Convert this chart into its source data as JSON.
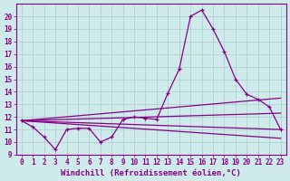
{
  "bg_color": "#ceeaea",
  "grid_color": "#aacccc",
  "line_color": "#880088",
  "x_label": "Windchill (Refroidissement éolien,°C)",
  "xlabel_fontsize": 6.5,
  "xlim": [
    -0.5,
    23.5
  ],
  "ylim": [
    9,
    21
  ],
  "xticks": [
    0,
    1,
    2,
    3,
    4,
    5,
    6,
    7,
    8,
    9,
    10,
    11,
    12,
    13,
    14,
    15,
    16,
    17,
    18,
    19,
    20,
    21,
    22,
    23
  ],
  "yticks": [
    9,
    10,
    11,
    12,
    13,
    14,
    15,
    16,
    17,
    18,
    19,
    20
  ],
  "tick_fontsize": 5.5,
  "main_x": [
    0,
    1,
    2,
    3,
    4,
    5,
    6,
    7,
    8,
    9,
    10,
    11,
    12,
    13,
    14,
    15,
    16,
    17,
    18,
    19,
    20,
    21,
    22,
    23
  ],
  "main_y": [
    11.7,
    11.2,
    10.4,
    9.4,
    11.0,
    11.1,
    11.1,
    10.0,
    10.4,
    11.8,
    12.0,
    11.9,
    11.8,
    13.9,
    15.8,
    20.0,
    20.5,
    19.0,
    17.2,
    15.0,
    13.8,
    13.4,
    12.8,
    11.0
  ],
  "line1_x": [
    0,
    23
  ],
  "line1_y": [
    11.7,
    13.5
  ],
  "line2_x": [
    0,
    23
  ],
  "line2_y": [
    11.7,
    12.3
  ],
  "line3_x": [
    0,
    23
  ],
  "line3_y": [
    11.7,
    11.0
  ],
  "line4_x": [
    0,
    23
  ],
  "line4_y": [
    11.7,
    10.3
  ]
}
